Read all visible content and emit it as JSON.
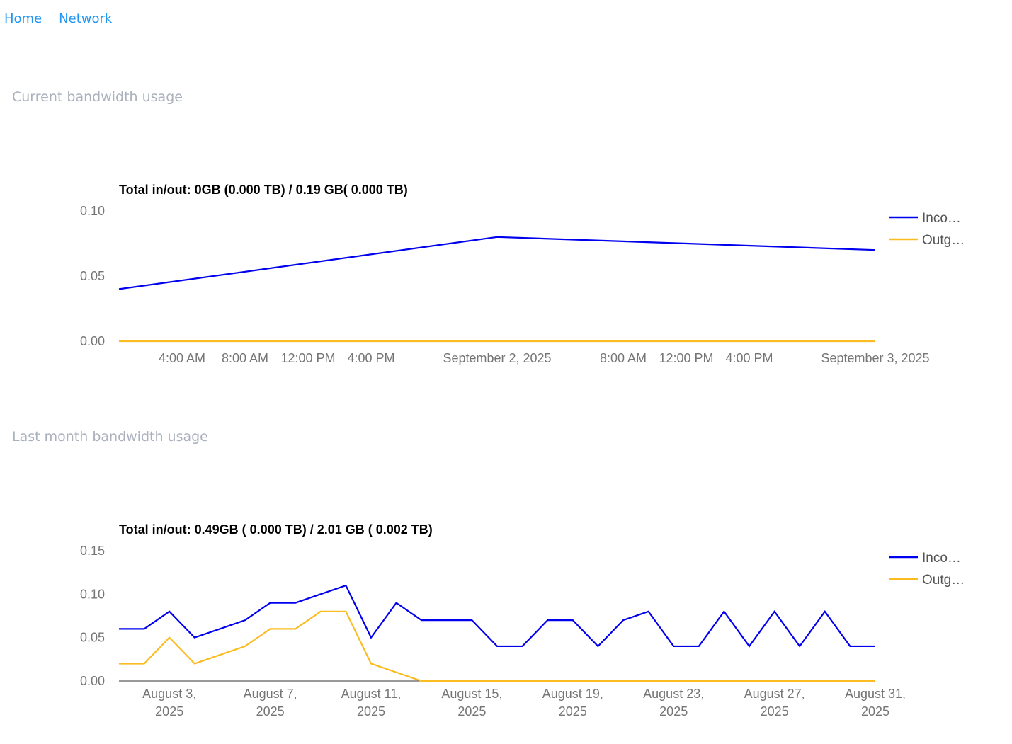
{
  "nav": {
    "home": "Home",
    "network": "Network"
  },
  "sections": {
    "current_title": "Current bandwidth usage",
    "month_title": "Last month bandwidth usage"
  },
  "colors": {
    "incoming": "#0000ee",
    "outgoing": "#fbbc22",
    "link": "#2196f3",
    "axis_text": "#757575",
    "section_title": "#aab0bc"
  },
  "chart_data": [
    {
      "type": "line",
      "title": "Total in/out: 0GB (0.000 TB) / 0.19 GB( 0.000 TB)",
      "ylim": [
        0,
        0.1
      ],
      "yticks": [
        "0.10",
        "0.05",
        "0.00"
      ],
      "xlim": [
        0,
        48
      ],
      "xticks": [
        {
          "x": 4,
          "label": "4:00 AM"
        },
        {
          "x": 8,
          "label": "8:00 AM"
        },
        {
          "x": 12,
          "label": "12:00 PM"
        },
        {
          "x": 16,
          "label": "4:00 PM"
        },
        {
          "x": 24,
          "label": "September 2, 2025"
        },
        {
          "x": 32,
          "label": "8:00 AM"
        },
        {
          "x": 36,
          "label": "12:00 PM"
        },
        {
          "x": 40,
          "label": "4:00 PM"
        },
        {
          "x": 48,
          "label": "September 3, 2025"
        }
      ],
      "series": [
        {
          "name": "Inco…",
          "color": "#0000ee",
          "x": [
            0,
            24,
            48
          ],
          "y": [
            0.04,
            0.08,
            0.07
          ]
        },
        {
          "name": "Outg…",
          "color": "#fbbc22",
          "x": [
            0,
            24,
            48
          ],
          "y": [
            0.0,
            0.0,
            0.0
          ]
        }
      ],
      "legend": "right"
    },
    {
      "type": "line",
      "title": "Total in/out: 0.49GB ( 0.000 TB) / 2.01 GB ( 0.002 TB)",
      "ylim": [
        0,
        0.15
      ],
      "yticks": [
        "0.15",
        "0.10",
        "0.05",
        "0.00"
      ],
      "xlim": [
        1,
        31
      ],
      "xticks": [
        {
          "x": 3,
          "label": [
            "August 3,",
            "2025"
          ]
        },
        {
          "x": 7,
          "label": [
            "August 7,",
            "2025"
          ]
        },
        {
          "x": 11,
          "label": [
            "August 11,",
            "2025"
          ]
        },
        {
          "x": 15,
          "label": [
            "August 15,",
            "2025"
          ]
        },
        {
          "x": 19,
          "label": [
            "August 19,",
            "2025"
          ]
        },
        {
          "x": 23,
          "label": [
            "August 23,",
            "2025"
          ]
        },
        {
          "x": 27,
          "label": [
            "August 27,",
            "2025"
          ]
        },
        {
          "x": 31,
          "label": [
            "August 31,",
            "2025"
          ]
        }
      ],
      "series": [
        {
          "name": "Inco…",
          "color": "#0000ee",
          "x": [
            1,
            2,
            3,
            4,
            5,
            6,
            7,
            8,
            9,
            10,
            11,
            12,
            13,
            14,
            15,
            16,
            17,
            18,
            19,
            20,
            21,
            22,
            23,
            24,
            25,
            26,
            27,
            28,
            29,
            30,
            31
          ],
          "y": [
            0.06,
            0.06,
            0.08,
            0.05,
            0.06,
            0.07,
            0.09,
            0.09,
            0.1,
            0.11,
            0.05,
            0.09,
            0.07,
            0.07,
            0.07,
            0.04,
            0.04,
            0.07,
            0.07,
            0.04,
            0.07,
            0.08,
            0.04,
            0.04,
            0.08,
            0.04,
            0.08,
            0.04,
            0.08,
            0.04,
            0.04
          ]
        },
        {
          "name": "Outg…",
          "color": "#fbbc22",
          "x": [
            1,
            2,
            3,
            4,
            5,
            6,
            7,
            8,
            9,
            10,
            11,
            12,
            13,
            14,
            15,
            16,
            17,
            18,
            19,
            20,
            21,
            22,
            23,
            24,
            25,
            26,
            27,
            28,
            29,
            30,
            31
          ],
          "y": [
            0.02,
            0.02,
            0.05,
            0.02,
            0.03,
            0.04,
            0.06,
            0.06,
            0.08,
            0.08,
            0.02,
            0.01,
            0.0,
            0.0,
            0.0,
            0.0,
            0.0,
            0.0,
            0.0,
            0.0,
            0.0,
            0.0,
            0.0,
            0.0,
            0.0,
            0.0,
            0.0,
            0.0,
            0.0,
            0.0,
            0.0
          ]
        }
      ],
      "legend": "right"
    }
  ]
}
